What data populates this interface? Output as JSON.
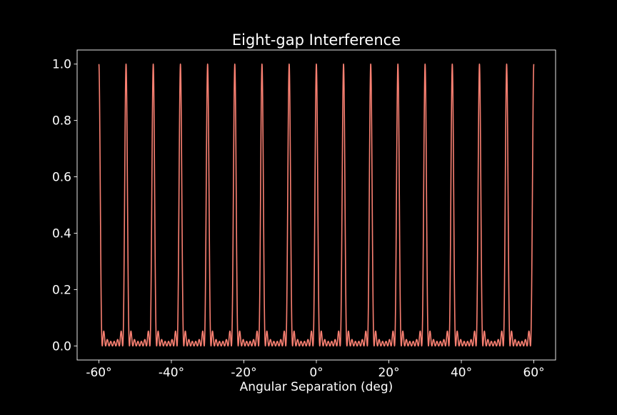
{
  "chart_data": {
    "type": "line",
    "title": "Eight-gap Interference",
    "xlabel": "Angular Separation (deg)",
    "ylabel": "",
    "xlim": [
      -66,
      66
    ],
    "ylim": [
      -0.05,
      1.05
    ],
    "x_ticks": [
      {
        "value": -60,
        "label": "-60°"
      },
      {
        "value": -40,
        "label": "-40°"
      },
      {
        "value": -20,
        "label": "-20°"
      },
      {
        "value": 0,
        "label": "0°"
      },
      {
        "value": 20,
        "label": "20°"
      },
      {
        "value": 40,
        "label": "40°"
      },
      {
        "value": 60,
        "label": "60°"
      }
    ],
    "y_ticks": [
      {
        "value": 0.0,
        "label": "0.0"
      },
      {
        "value": 0.2,
        "label": "0.2"
      },
      {
        "value": 0.4,
        "label": "0.4"
      },
      {
        "value": 0.6,
        "label": "0.6"
      },
      {
        "value": 0.8,
        "label": "0.8"
      },
      {
        "value": 1.0,
        "label": "1.0"
      }
    ],
    "grid": false,
    "series": [
      {
        "model": "eight-slit interference: I = (sin(N·x)/(N·sin x))^2 with N = 8, x = pi·theta/7.5°",
        "slit_count": 8,
        "principal_max_spacing_deg": 7.5,
        "x_range": [
          -60,
          60
        ],
        "principal_maxima_x": [
          -60,
          -52.5,
          -45,
          -37.5,
          -30,
          -22.5,
          -15,
          -7.5,
          0,
          7.5,
          15,
          22.5,
          30,
          37.5,
          45,
          52.5,
          60
        ],
        "principal_maxima_y": 1.0,
        "color": "#fa8072"
      }
    ],
    "colors": {
      "background": "#000000",
      "axes": "#ffffff",
      "line": "#fa8072"
    }
  }
}
